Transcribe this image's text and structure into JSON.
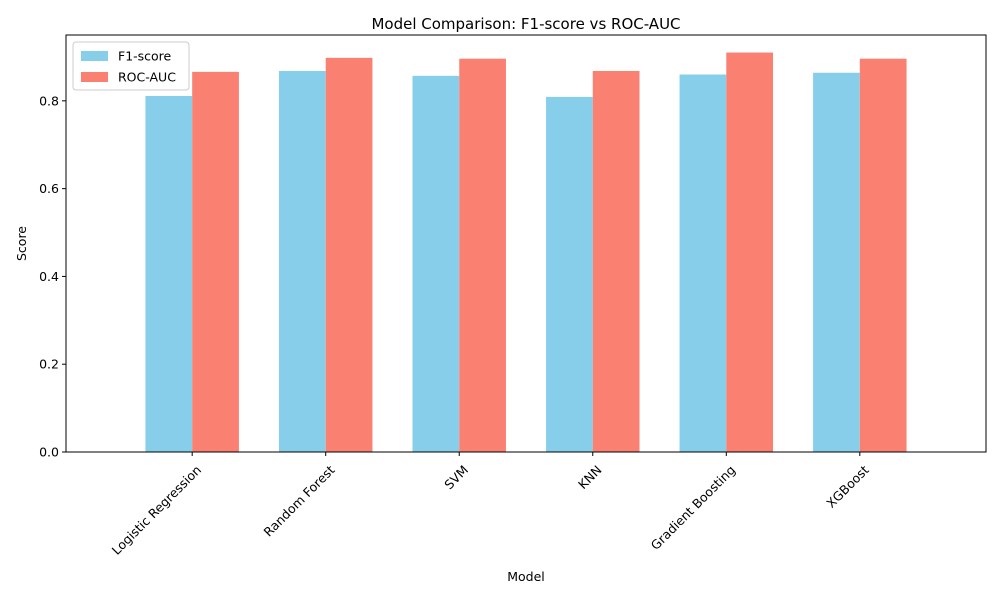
{
  "chart_data": {
    "type": "bar",
    "title": "Model Comparison: F1-score vs ROC-AUC",
    "xlabel": "Model",
    "ylabel": "Score",
    "categories": [
      "Logistic Regression",
      "Random Forest",
      "SVM",
      "KNN",
      "Gradient Boosting",
      "XGBoost"
    ],
    "series": [
      {
        "name": "F1-score",
        "color": "#87CEEB",
        "values": [
          0.811,
          0.868,
          0.857,
          0.809,
          0.86,
          0.864
        ]
      },
      {
        "name": "ROC-AUC",
        "color": "#FA8072",
        "values": [
          0.866,
          0.898,
          0.896,
          0.868,
          0.91,
          0.896
        ]
      }
    ],
    "ylim": [
      0,
      0.95
    ],
    "yticks": [
      0.0,
      0.2,
      0.4,
      0.6,
      0.8
    ],
    "ytick_labels": [
      "0.0",
      "0.2",
      "0.4",
      "0.6",
      "0.8"
    ],
    "grid": false,
    "legend_position": "top-left",
    "xtick_rotation": 45
  }
}
